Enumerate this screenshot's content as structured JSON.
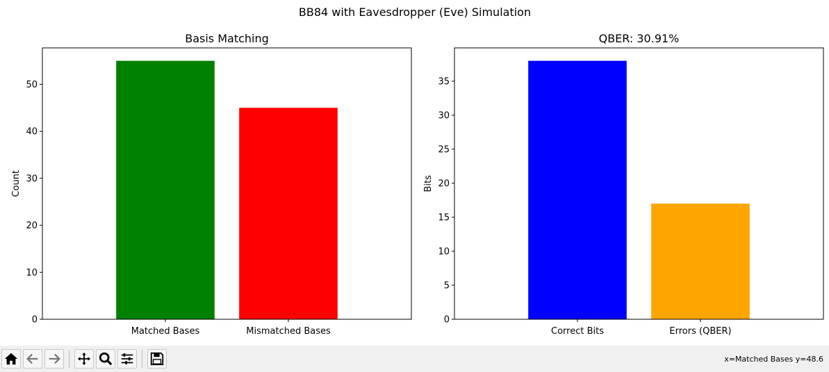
{
  "figure": {
    "suptitle": "BB84 with Eavesdropper (Eve) Simulation"
  },
  "chart_data": [
    {
      "type": "bar",
      "title": "Basis Matching",
      "xlabel": "",
      "ylabel": "Count",
      "categories": [
        "Matched Bases",
        "Mismatched Bases"
      ],
      "values": [
        55,
        45
      ],
      "colors": [
        "#008000",
        "#ff0000"
      ],
      "ylim": [
        0,
        57.75
      ],
      "yticks": [
        0,
        10,
        20,
        30,
        40,
        50
      ],
      "grid": false
    },
    {
      "type": "bar",
      "title": "QBER: 30.91%",
      "xlabel": "",
      "ylabel": "Bits",
      "categories": [
        "Correct Bits",
        "Errors (QBER)"
      ],
      "values": [
        38,
        17
      ],
      "colors": [
        "#0000ff",
        "#ffa500"
      ],
      "ylim": [
        0,
        39.9
      ],
      "yticks": [
        0,
        5,
        10,
        15,
        20,
        25,
        30,
        35
      ],
      "grid": false
    }
  ],
  "toolbar": {
    "buttons": [
      {
        "name": "home-icon"
      },
      {
        "name": "back-icon"
      },
      {
        "name": "forward-icon"
      },
      {
        "name": "pan-icon"
      },
      {
        "name": "zoom-icon"
      },
      {
        "name": "configure-subplots-icon"
      },
      {
        "name": "save-icon"
      }
    ],
    "coords": "x=Matched Bases y=48.6"
  }
}
